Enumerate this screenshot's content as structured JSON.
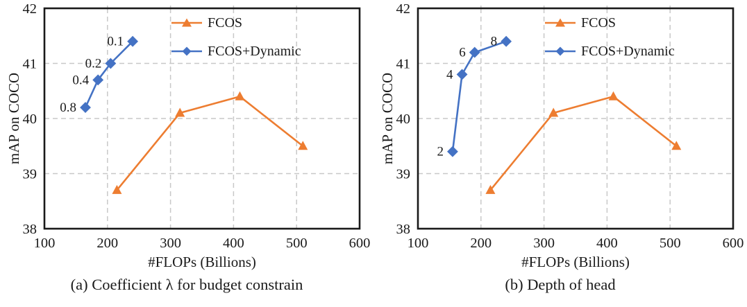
{
  "chart_data": [
    {
      "type": "line",
      "caption": "(a) Coefficient λ for budget constrain",
      "xlabel": "#FLOPs (Billions)",
      "ylabel": "mAP on COCO",
      "xlim": [
        100,
        600
      ],
      "ylim": [
        38,
        42
      ],
      "xticks": [
        100,
        200,
        300,
        400,
        500,
        600
      ],
      "yticks": [
        38,
        39,
        40,
        41,
        42
      ],
      "grid": "dashed",
      "grid_color": "#C8C8C8",
      "border_color": "#1a1a1a",
      "legend_position": "top-right-inside",
      "series": [
        {
          "name": "FCOS",
          "color": "#ED7D31",
          "marker": "triangle",
          "points": [
            {
              "x": 215,
              "y": 38.7
            },
            {
              "x": 315,
              "y": 40.1
            },
            {
              "x": 410,
              "y": 40.4
            },
            {
              "x": 510,
              "y": 39.5
            }
          ]
        },
        {
          "name": "FCOS+Dynamic",
          "color": "#4472C4",
          "marker": "diamond",
          "points": [
            {
              "x": 165,
              "y": 40.2,
              "label": "0.8"
            },
            {
              "x": 185,
              "y": 40.7,
              "label": "0.4"
            },
            {
              "x": 205,
              "y": 41.0,
              "label": "0.2"
            },
            {
              "x": 240,
              "y": 41.4,
              "label": "0.1"
            }
          ]
        }
      ]
    },
    {
      "type": "line",
      "caption": "(b) Depth of head",
      "xlabel": "#FLOPs (Billions)",
      "ylabel": "mAP on COCO",
      "xlim": [
        100,
        600
      ],
      "ylim": [
        38,
        42
      ],
      "xticks": [
        100,
        200,
        300,
        400,
        500,
        600
      ],
      "yticks": [
        38,
        39,
        40,
        41,
        42
      ],
      "grid": "dashed",
      "grid_color": "#C8C8C8",
      "border_color": "#1a1a1a",
      "legend_position": "top-right-inside",
      "series": [
        {
          "name": "FCOS",
          "color": "#ED7D31",
          "marker": "triangle",
          "points": [
            {
              "x": 215,
              "y": 38.7
            },
            {
              "x": 315,
              "y": 40.1
            },
            {
              "x": 410,
              "y": 40.4
            },
            {
              "x": 510,
              "y": 39.5
            }
          ]
        },
        {
          "name": "FCOS+Dynamic",
          "color": "#4472C4",
          "marker": "diamond",
          "points": [
            {
              "x": 155,
              "y": 39.4,
              "label": "2"
            },
            {
              "x": 170,
              "y": 40.8,
              "label": "4"
            },
            {
              "x": 190,
              "y": 41.2,
              "label": "6"
            },
            {
              "x": 240,
              "y": 41.4,
              "label": "8"
            }
          ]
        }
      ]
    }
  ]
}
